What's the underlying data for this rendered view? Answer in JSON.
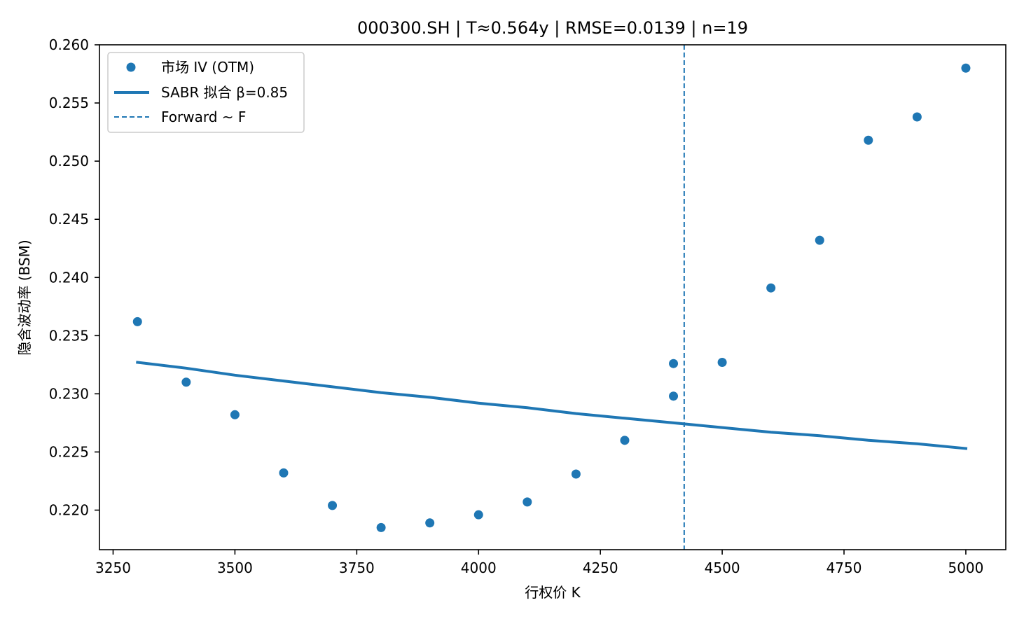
{
  "chart_data": {
    "type": "scatter",
    "title": "000300.SH | T≈0.564y | RMSE=0.0139 | n=19",
    "xlabel": "行权价 K",
    "ylabel": "隐含波动率 (BSM)",
    "xlim": [
      3222,
      5082
    ],
    "ylim": [
      0.2166,
      0.26
    ],
    "xticks": [
      3250,
      3500,
      3750,
      4000,
      4250,
      4500,
      4750,
      5000
    ],
    "yticks": [
      0.22,
      0.225,
      0.23,
      0.235,
      0.24,
      0.245,
      0.25,
      0.255,
      0.26
    ],
    "ytick_labels": [
      "0.220",
      "0.225",
      "0.230",
      "0.235",
      "0.240",
      "0.245",
      "0.250",
      "0.255",
      "0.260"
    ],
    "grid": false,
    "legend_position": "top-left",
    "series": [
      {
        "name": "市场 IV (OTM)",
        "kind": "scatter",
        "color": "#1f77b4",
        "points": [
          [
            3300,
            0.2362
          ],
          [
            3400,
            0.231
          ],
          [
            3500,
            0.2282
          ],
          [
            3600,
            0.2232
          ],
          [
            3700,
            0.2204
          ],
          [
            3800,
            0.2185
          ],
          [
            3900,
            0.2189
          ],
          [
            4000,
            0.2196
          ],
          [
            4100,
            0.2207
          ],
          [
            4200,
            0.2231
          ],
          [
            4300,
            0.226
          ],
          [
            4400,
            0.2326
          ],
          [
            4400,
            0.2298
          ],
          [
            4500,
            0.2327
          ],
          [
            4600,
            0.2391
          ],
          [
            4700,
            0.2432
          ],
          [
            4800,
            0.2518
          ],
          [
            4900,
            0.2538
          ],
          [
            5000,
            0.258
          ]
        ]
      },
      {
        "name": "SABR 拟合 β=0.85",
        "kind": "line",
        "color": "#1f77b4",
        "points": [
          [
            3300,
            0.2327
          ],
          [
            3400,
            0.2322
          ],
          [
            3500,
            0.2316
          ],
          [
            3600,
            0.2311
          ],
          [
            3700,
            0.2306
          ],
          [
            3800,
            0.2301
          ],
          [
            3900,
            0.2297
          ],
          [
            4000,
            0.2292
          ],
          [
            4100,
            0.2288
          ],
          [
            4200,
            0.2283
          ],
          [
            4300,
            0.2279
          ],
          [
            4400,
            0.2275
          ],
          [
            4500,
            0.2271
          ],
          [
            4600,
            0.2267
          ],
          [
            4700,
            0.2264
          ],
          [
            4800,
            0.226
          ],
          [
            4900,
            0.2257
          ],
          [
            5000,
            0.2253
          ]
        ]
      },
      {
        "name": "Forward ~ F",
        "kind": "vline",
        "color": "#1f77b4",
        "x": 4422
      }
    ]
  }
}
